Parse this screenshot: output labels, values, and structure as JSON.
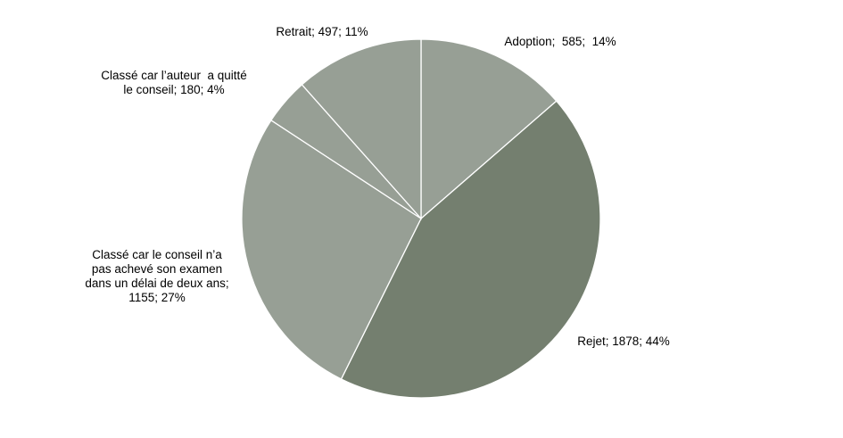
{
  "chart_data": {
    "type": "pie",
    "title": "",
    "slices": [
      {
        "label": "Adoption",
        "value": 585,
        "percent": "14%",
        "color": "#979f95",
        "text_lines": [
          "Adoption;  585;  14%"
        ]
      },
      {
        "label": "Rejet",
        "value": 1878,
        "percent": "44%",
        "color": "#747f6f",
        "text_lines": [
          "Rejet; 1878; 44%"
        ]
      },
      {
        "label": "Classé car le conseil n’a pas achevé son examen dans un délai de deux ans",
        "value": 1155,
        "percent": "27%",
        "color": "#979f95",
        "text_lines": [
          "Classé car le conseil n’a",
          "pas achevé son examen",
          "dans un délai de deux ans;",
          "1155; 27%"
        ]
      },
      {
        "label": "Classé car l’auteur  a quitté le conseil",
        "value": 180,
        "percent": "4%",
        "color": "#979f95",
        "text_lines": [
          "Classé car l’auteur  a quitté",
          "le conseil; 180; 4%"
        ]
      },
      {
        "label": "Retrait",
        "value": 497,
        "percent": "11%",
        "color": "#979f95",
        "text_lines": [
          "Retrait; 497; 11%"
        ]
      }
    ],
    "start_angle_deg": 0,
    "direction": "clockwise",
    "legend": "none",
    "slice_border_color": "#ffffff"
  }
}
